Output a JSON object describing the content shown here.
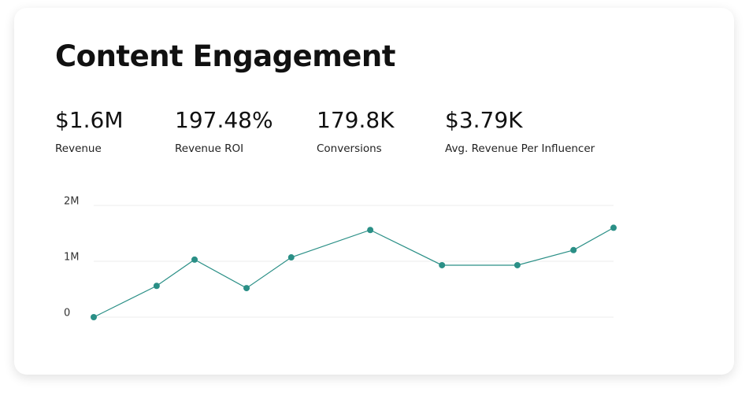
{
  "header": {
    "title": "Content Engagement"
  },
  "stats": [
    {
      "value": "$1.6M",
      "label": "Revenue"
    },
    {
      "value": "197.48%",
      "label": "Revenue ROI"
    },
    {
      "value": "179.8K",
      "label": "Conversions"
    },
    {
      "value": "$3.79K",
      "label": "Avg. Revenue Per Influencer"
    }
  ],
  "chart_data": {
    "type": "line",
    "x": [
      0,
      12.1,
      19.4,
      29.4,
      38.0,
      53.2,
      67.0,
      81.5,
      92.3,
      100
    ],
    "xlim": [
      0,
      100
    ],
    "series": [
      {
        "color": "#2a8f86",
        "values": [
          0,
          560000,
          1030000,
          520000,
          1070000,
          1560000,
          930000,
          930000,
          1200000,
          1600000
        ]
      }
    ],
    "ylim": [
      0,
      2000000
    ],
    "yticks": [
      0,
      {
        "value": 1000000,
        "label": "1M"
      },
      {
        "value": 2000000,
        "label": "2M"
      }
    ],
    "grid": true
  }
}
